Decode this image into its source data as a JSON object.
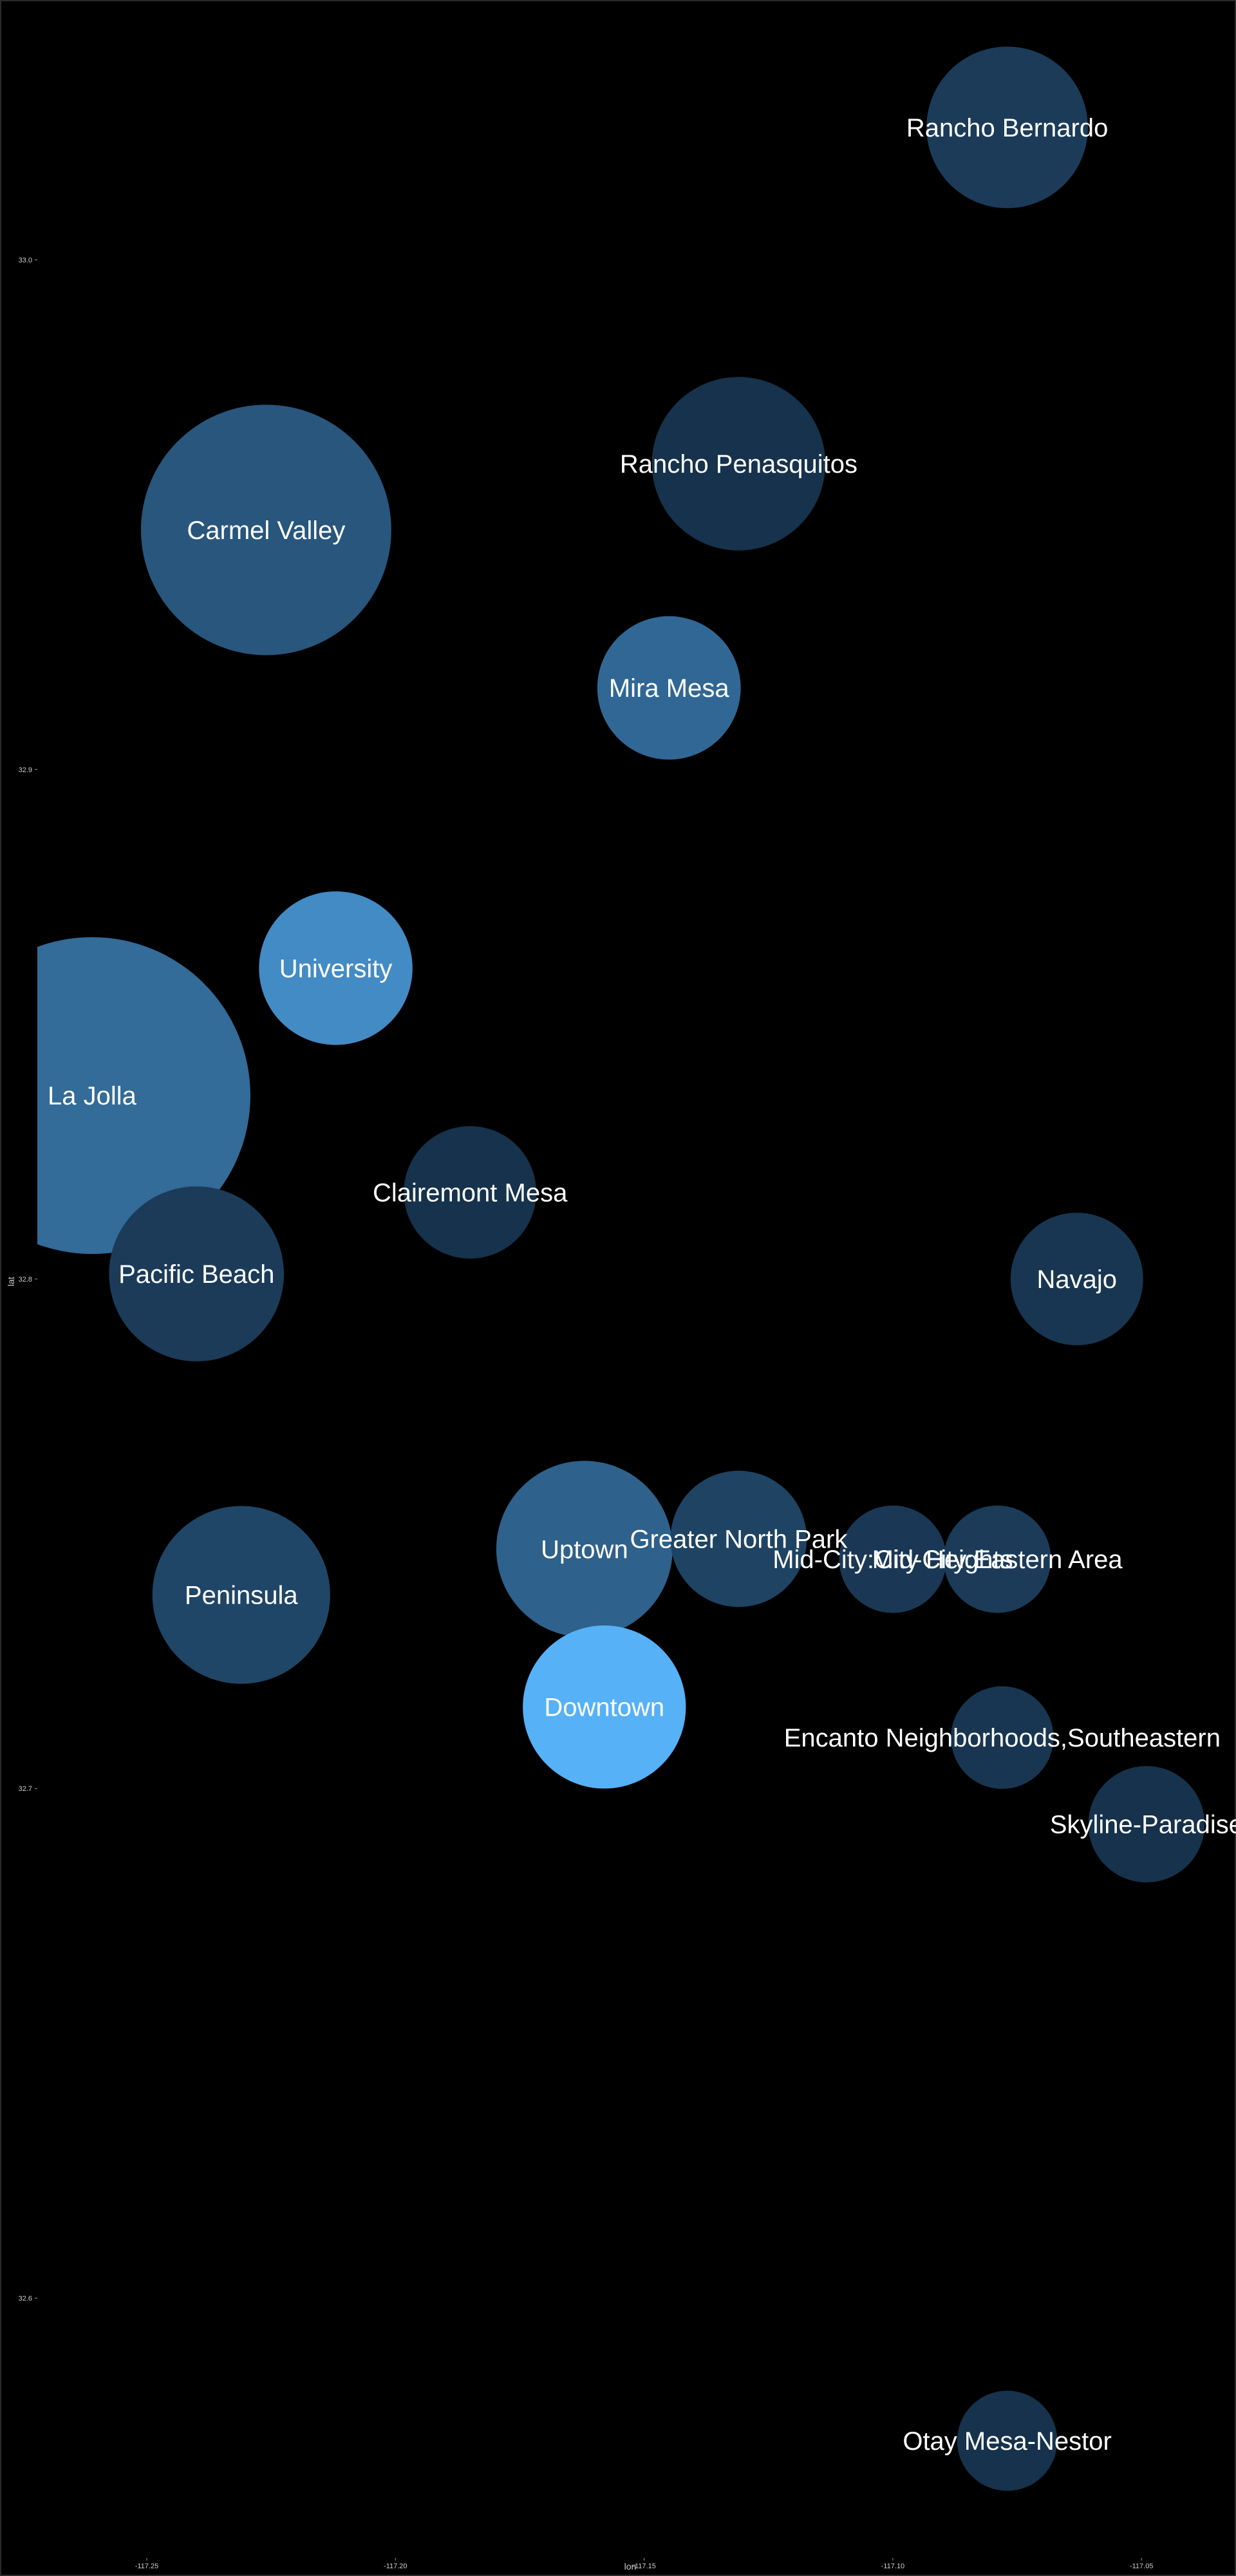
{
  "chart_data": {
    "type": "scatter",
    "subtype": "bubble",
    "title": "",
    "xlabel": "lon",
    "ylabel": "lat",
    "xlim": [
      -117.272,
      -117.031
    ],
    "ylim": [
      32.549,
      33.051
    ],
    "x_ticks": [
      {
        "value": -117.25,
        "label": "-117.25"
      },
      {
        "value": -117.2,
        "label": "-117.20"
      },
      {
        "value": -117.15,
        "label": "-117.15"
      },
      {
        "value": -117.1,
        "label": "-117.10"
      },
      {
        "value": -117.05,
        "label": "-117.05"
      }
    ],
    "y_ticks": [
      {
        "value": 33.0,
        "label": "33.0"
      },
      {
        "value": 32.9,
        "label": "32.9"
      },
      {
        "value": 32.8,
        "label": "32.8"
      },
      {
        "value": 32.7,
        "label": "32.7"
      },
      {
        "value": 32.6,
        "label": "32.6"
      }
    ],
    "grid": false,
    "legend": "none",
    "size_scale": "area proportional to value (relative 1-25)",
    "color_scale": [
      "#132b43",
      "#56b1f7"
    ],
    "points": [
      {
        "name": "Rancho Bernardo",
        "lon": -117.077,
        "lat": 33.026,
        "size": 5.2,
        "color": 0.12
      },
      {
        "name": "Rancho Penasquitos",
        "lon": -117.131,
        "lat": 32.96,
        "size": 6.0,
        "color": 0.05
      },
      {
        "name": "Carmel Valley",
        "lon": -117.226,
        "lat": 32.947,
        "size": 12.5,
        "color": 0.32
      },
      {
        "name": "Mira Mesa",
        "lon": -117.145,
        "lat": 32.916,
        "size": 4.1,
        "color": 0.45
      },
      {
        "name": "University",
        "lon": -117.212,
        "lat": 32.861,
        "size": 4.7,
        "color": 0.72
      },
      {
        "name": "La Jolla",
        "lon": -117.261,
        "lat": 32.836,
        "size": 20.0,
        "color": 0.48
      },
      {
        "name": "Clairemont Mesa",
        "lon": -117.185,
        "lat": 32.817,
        "size": 3.5,
        "color": 0.05
      },
      {
        "name": "Pacific Beach",
        "lon": -117.24,
        "lat": 32.801,
        "size": 6.1,
        "color": 0.12
      },
      {
        "name": "Navajo",
        "lon": -117.063,
        "lat": 32.8,
        "size": 3.5,
        "color": 0.08
      },
      {
        "name": "Uptown",
        "lon": -117.162,
        "lat": 32.747,
        "size": 6.2,
        "color": 0.4
      },
      {
        "name": "Greater North Park",
        "lon": -117.131,
        "lat": 32.749,
        "size": 3.7,
        "color": 0.18
      },
      {
        "name": "Mid-City:City Heights",
        "lon": -117.1,
        "lat": 32.745,
        "size": 2.3,
        "color": 0.1
      },
      {
        "name": "Mid-City:Eastern Area",
        "lon": -117.079,
        "lat": 32.745,
        "size": 2.3,
        "color": 0.12
      },
      {
        "name": "Peninsula",
        "lon": -117.231,
        "lat": 32.738,
        "size": 6.3,
        "color": 0.2
      },
      {
        "name": "Downtown",
        "lon": -117.158,
        "lat": 32.716,
        "size": 5.3,
        "color": 1.0
      },
      {
        "name": "Encanto Neighborhoods,Southeastern",
        "lon": -117.078,
        "lat": 32.71,
        "size": 2.1,
        "color": 0.08
      },
      {
        "name": "Skyline-Paradise",
        "lon": -117.049,
        "lat": 32.693,
        "size": 2.7,
        "color": 0.05
      },
      {
        "name": "Otay Mesa-Nestor",
        "lon": -117.077,
        "lat": 32.572,
        "size": 2.0,
        "color": 0.05
      }
    ]
  }
}
